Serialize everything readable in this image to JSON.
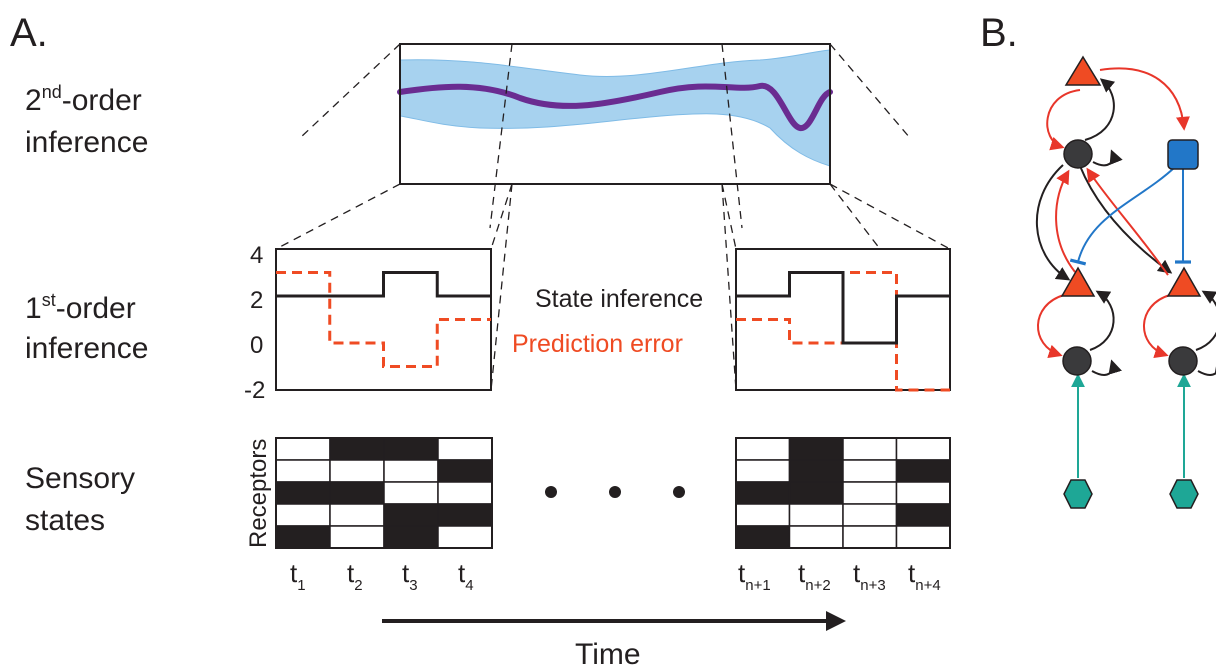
{
  "panel_a_label": "A.",
  "panel_b_label": "B.",
  "rows": {
    "second_order": {
      "prefix": "2",
      "sup": "nd",
      "rest": "-order",
      "line2": "inference"
    },
    "first_order": {
      "prefix": "1",
      "sup": "st",
      "rest": "-order",
      "line2": "inference"
    },
    "sensory": {
      "line1": "Sensory",
      "line2": "states"
    }
  },
  "first_order_chart": {
    "yticks": [
      "4",
      "2",
      "0",
      "-2"
    ],
    "ylim": [
      -2,
      4
    ],
    "legend": [
      {
        "label": "State inference",
        "color": "#231f20",
        "style": "solid"
      },
      {
        "label": "Prediction error",
        "color": "#ef4b23",
        "style": "dashed"
      }
    ],
    "left_window": {
      "state": [
        [
          0,
          2
        ],
        [
          1,
          2
        ],
        [
          2,
          3
        ],
        [
          3,
          2
        ]
      ],
      "error": [
        [
          0,
          3
        ],
        [
          1,
          0
        ],
        [
          2,
          -1
        ],
        [
          3,
          1
        ]
      ]
    },
    "right_window": {
      "state": [
        [
          0,
          2
        ],
        [
          1,
          3
        ],
        [
          2,
          0
        ],
        [
          3,
          2
        ]
      ],
      "error": [
        [
          0,
          1
        ],
        [
          1,
          0
        ],
        [
          2,
          3
        ],
        [
          3,
          -2
        ]
      ]
    }
  },
  "sensory_grid": {
    "axis_label": "Receptors",
    "left": {
      "time_labels": [
        {
          "base": "t",
          "sub": "1"
        },
        {
          "base": "t",
          "sub": "2"
        },
        {
          "base": "t",
          "sub": "3"
        },
        {
          "base": "t",
          "sub": "4"
        }
      ],
      "cells": [
        [
          0,
          1,
          1,
          0
        ],
        [
          0,
          0,
          0,
          1
        ],
        [
          1,
          1,
          0,
          0
        ],
        [
          0,
          0,
          1,
          1
        ],
        [
          1,
          0,
          1,
          0
        ]
      ]
    },
    "right": {
      "time_labels": [
        {
          "base": "t",
          "sub": "n+1"
        },
        {
          "base": "t",
          "sub": "n+2"
        },
        {
          "base": "t",
          "sub": "n+3"
        },
        {
          "base": "t",
          "sub": "n+4"
        }
      ],
      "cells": [
        [
          0,
          1,
          0,
          0
        ],
        [
          0,
          1,
          0,
          1
        ],
        [
          1,
          1,
          0,
          0
        ],
        [
          0,
          0,
          0,
          1
        ],
        [
          1,
          0,
          0,
          0
        ]
      ]
    }
  },
  "time_axis_label": "Time",
  "colors": {
    "ink": "#231f20",
    "prediction_error": "#ef4b23",
    "band": "#a7d2ef",
    "band_edge": "#7fbbe6",
    "second_order_line": "#6a2c91",
    "triangle_unit": "#ef4b23",
    "circle_unit": "#3a3a3c",
    "square_unit": "#2277c8",
    "hexagon_unit": "#1ea796",
    "feedback_arrow": "#e8362a",
    "inhibitory_link": "#2277c8",
    "sensory_arrow": "#1ea796"
  },
  "network_icons": [
    "triangle-node",
    "circle-node",
    "square-node",
    "hexagon-node"
  ]
}
